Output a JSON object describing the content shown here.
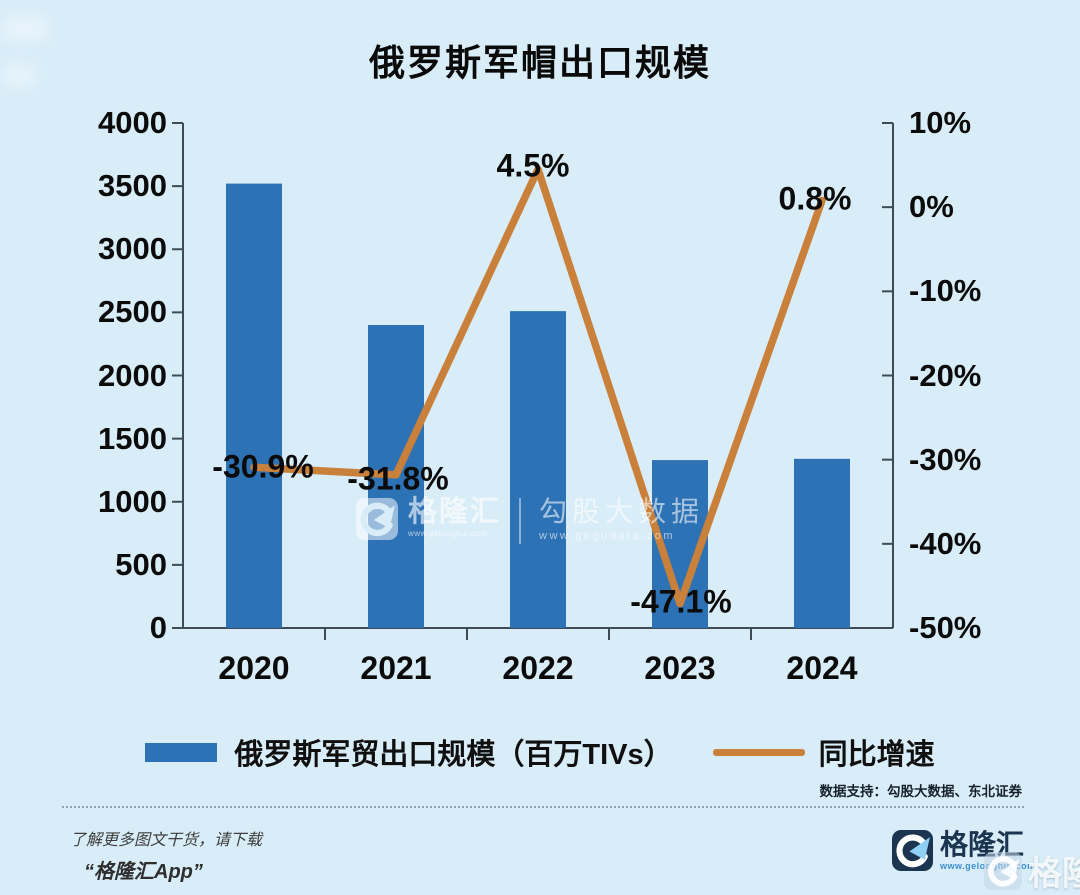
{
  "chart_data": {
    "type": "bar+line",
    "title": "俄罗斯军帽出口规模",
    "categories": [
      "2020",
      "2021",
      "2022",
      "2023",
      "2024"
    ],
    "series": [
      {
        "name": "俄罗斯军贸出口规模（百万TIVs）",
        "type": "bar",
        "axis": "left",
        "values": [
          3520,
          2400,
          2510,
          1330,
          1340
        ]
      },
      {
        "name": "同比增速",
        "type": "line",
        "axis": "right",
        "values": [
          -30.9,
          -31.8,
          4.5,
          -47.1,
          0.8
        ],
        "labels": [
          "-30.9%",
          "-31.8%",
          "4.5%",
          "-47.1%",
          "0.8%"
        ]
      }
    ],
    "left_axis": {
      "min": 0,
      "max": 4000,
      "ticks": [
        4000,
        3500,
        3000,
        2500,
        2000,
        1500,
        1000,
        500,
        0
      ]
    },
    "right_axis": {
      "min": -50,
      "max": 10,
      "tick_labels": [
        "10%",
        "0%",
        "-10%",
        "-20%",
        "-30%",
        "-40%",
        "-50%"
      ],
      "tick_values": [
        10,
        0,
        -10,
        -20,
        -30,
        -40,
        -50
      ]
    },
    "grid": false,
    "legend_position": "bottom"
  },
  "watermark": {
    "brand": "格隆汇",
    "brand_url": "www.gelonghui.com",
    "data_brand": "勾股大数据",
    "data_url": "www.gogudata.com"
  },
  "footer": {
    "data_support": "数据支持：勾股大数据、东北证券",
    "promo_line1": "了解更多图文干货，请下载",
    "promo_line2": "“格隆汇App”",
    "logo_text": "格隆汇",
    "logo_url": "www.gelonghui.com"
  },
  "colors": {
    "background": "#d9edf8",
    "bar": "#2d72b4",
    "line": "#c9803b",
    "axis": "#3e4a55",
    "text": "#0b0b0b",
    "navy": "#1b3550"
  }
}
